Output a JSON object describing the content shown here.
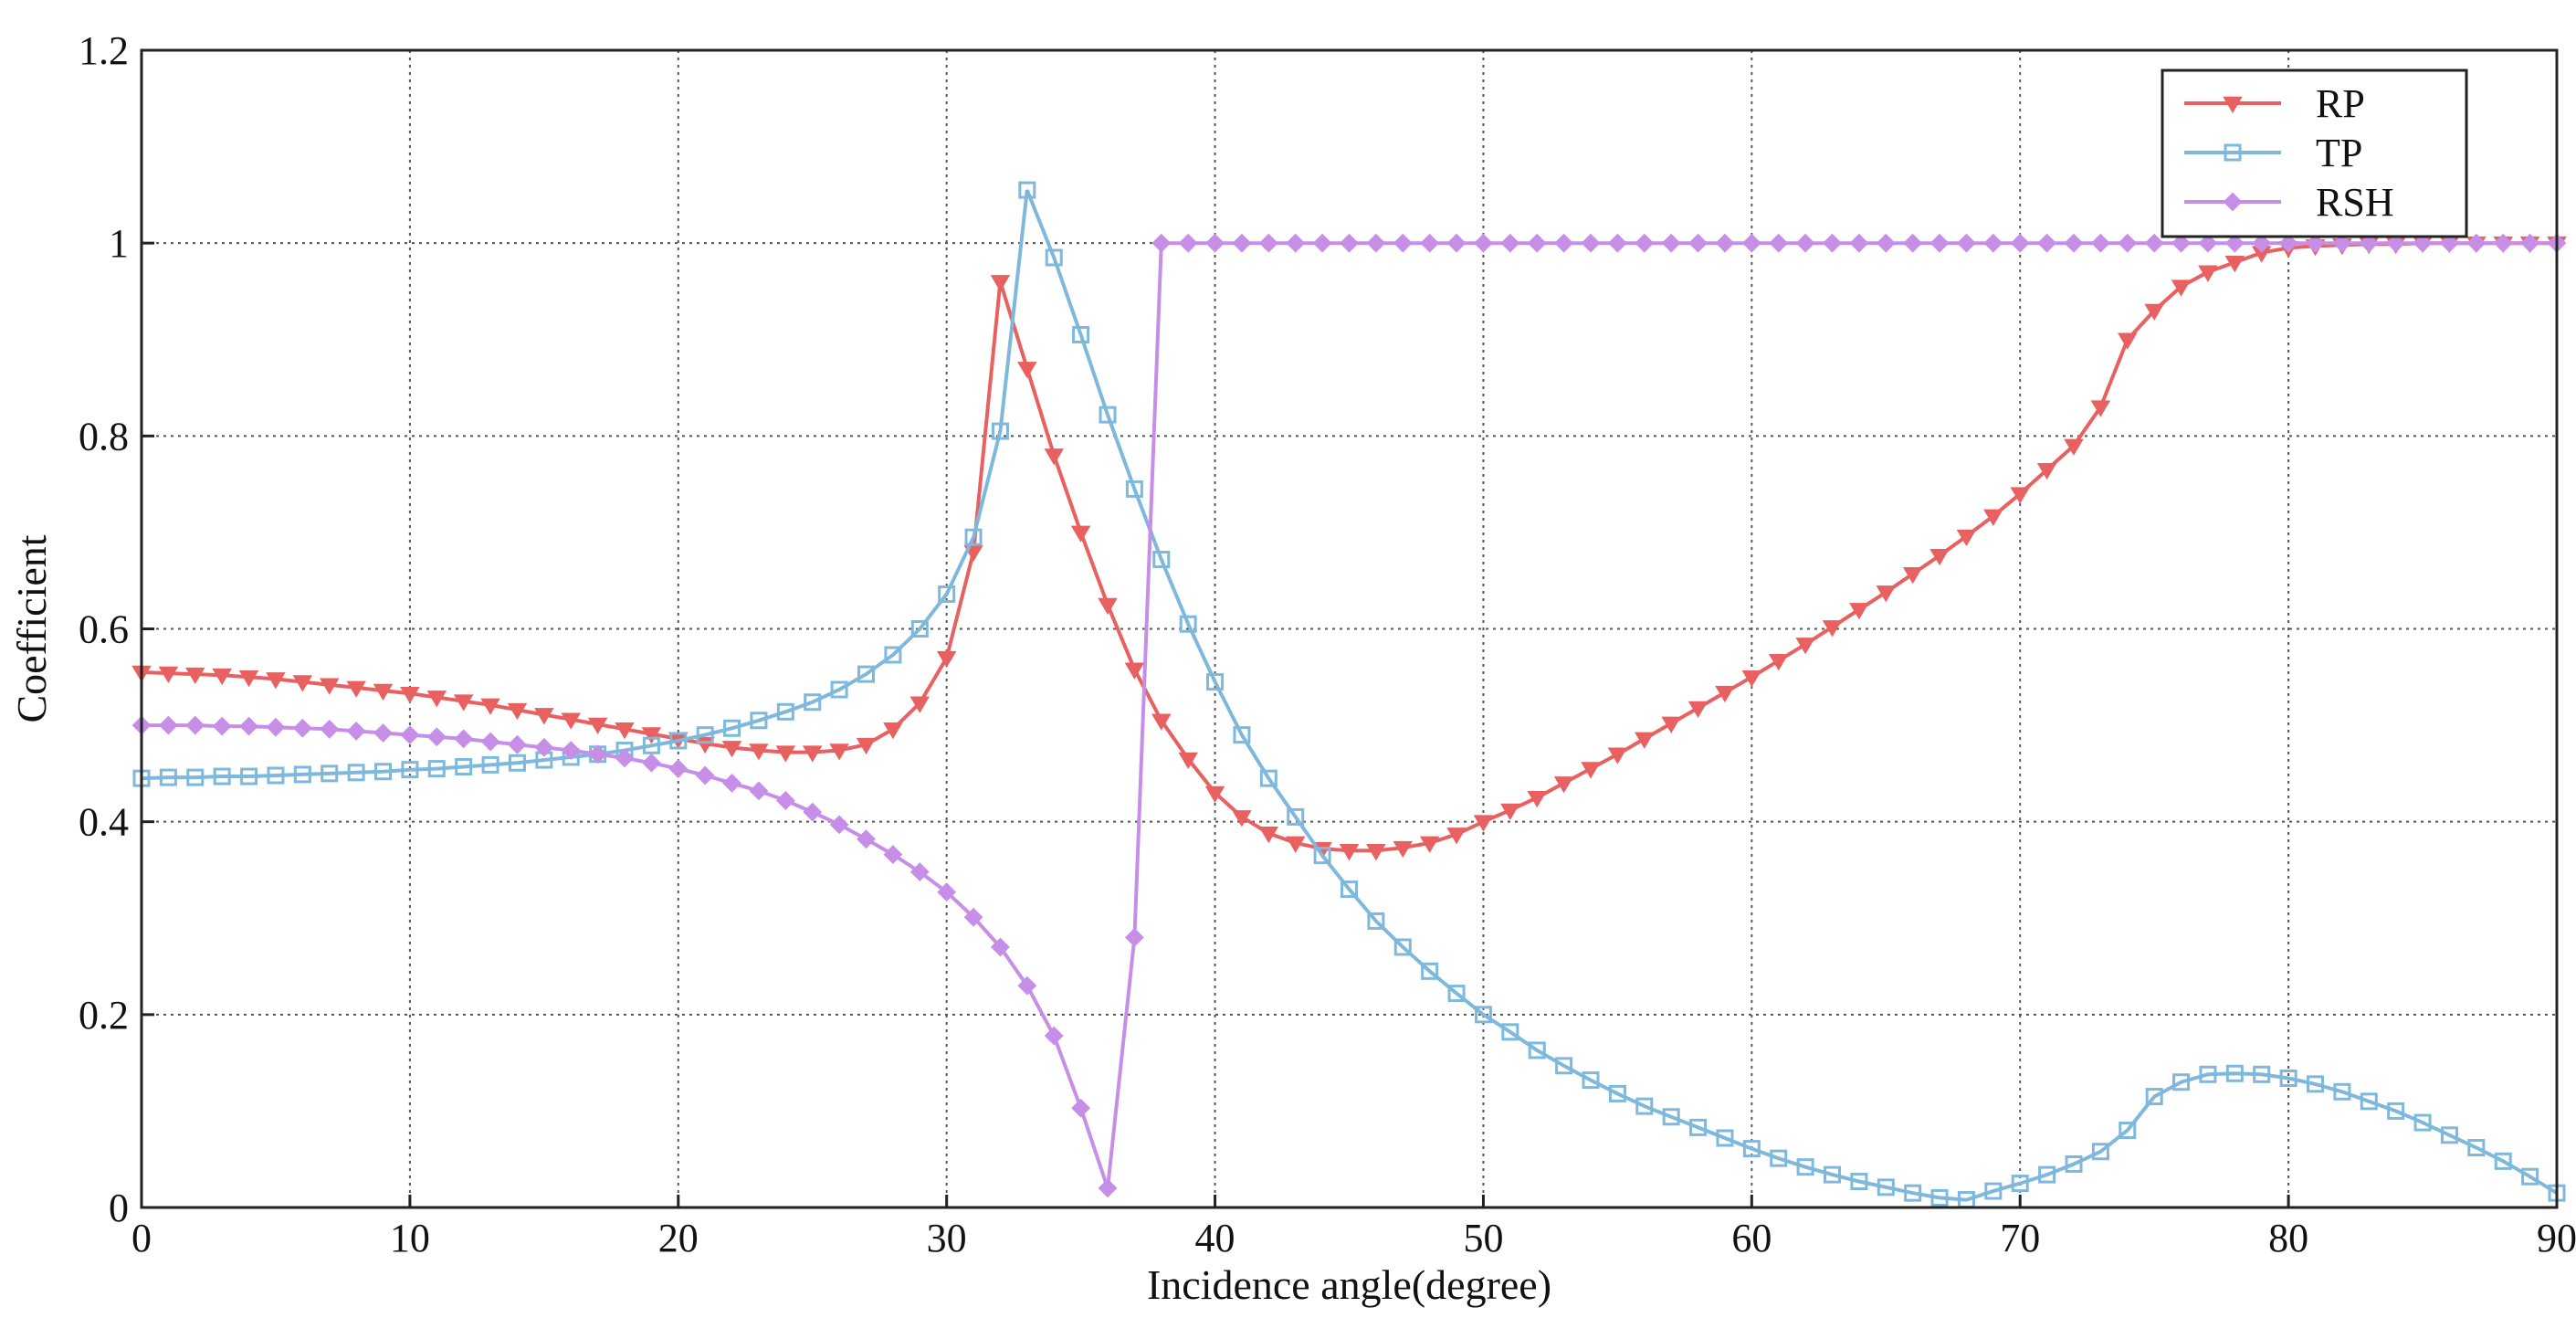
{
  "chart_data": {
    "type": "line",
    "title": "",
    "xlabel": "Incidence angle(degree)",
    "ylabel": "Coefficient",
    "xlim": [
      0,
      90
    ],
    "ylim": [
      0,
      1.2
    ],
    "xticks": [
      0,
      10,
      20,
      30,
      40,
      50,
      60,
      70,
      80,
      90
    ],
    "yticks": [
      0,
      0.2,
      0.4,
      0.6,
      0.8,
      1,
      1.2
    ],
    "xtick_labels": [
      "0",
      "10",
      "20",
      "30",
      "40",
      "50",
      "60",
      "70",
      "80",
      "90"
    ],
    "ytick_labels": [
      "0",
      "0.2",
      "0.4",
      "0.6",
      "0.8",
      "1",
      "1.2"
    ],
    "grid": true,
    "legend_position": "top-right",
    "x": [
      0,
      1,
      2,
      3,
      4,
      5,
      6,
      7,
      8,
      9,
      10,
      11,
      12,
      13,
      14,
      15,
      16,
      17,
      18,
      19,
      20,
      21,
      22,
      23,
      24,
      25,
      26,
      27,
      28,
      29,
      30,
      31,
      32,
      33,
      34,
      35,
      36,
      37,
      38,
      39,
      40,
      41,
      42,
      43,
      44,
      45,
      46,
      47,
      48,
      49,
      50,
      51,
      52,
      53,
      54,
      55,
      56,
      57,
      58,
      59,
      60,
      61,
      62,
      63,
      64,
      65,
      66,
      67,
      68,
      69,
      70,
      71,
      72,
      73,
      74,
      75,
      76,
      77,
      78,
      79,
      80,
      81,
      82,
      83,
      84,
      85,
      86,
      87,
      88,
      89,
      90
    ],
    "series": [
      {
        "name": "RP",
        "color": "#e8605f",
        "marker": "triangle-down",
        "values": [
          0.555,
          0.554,
          0.553,
          0.552,
          0.55,
          0.548,
          0.545,
          0.542,
          0.539,
          0.536,
          0.533,
          0.529,
          0.525,
          0.521,
          0.516,
          0.511,
          0.506,
          0.501,
          0.496,
          0.491,
          0.486,
          0.481,
          0.477,
          0.474,
          0.472,
          0.472,
          0.474,
          0.48,
          0.496,
          0.523,
          0.57,
          0.68,
          0.96,
          0.87,
          0.78,
          0.7,
          0.625,
          0.558,
          0.505,
          0.465,
          0.43,
          0.405,
          0.388,
          0.378,
          0.372,
          0.37,
          0.37,
          0.373,
          0.378,
          0.387,
          0.4,
          0.412,
          0.425,
          0.44,
          0.455,
          0.47,
          0.486,
          0.502,
          0.518,
          0.534,
          0.55,
          0.567,
          0.584,
          0.602,
          0.62,
          0.638,
          0.657,
          0.676,
          0.696,
          0.717,
          0.74,
          0.765,
          0.79,
          0.83,
          0.9,
          0.93,
          0.955,
          0.97,
          0.98,
          0.99,
          0.995,
          0.997,
          0.998,
          0.999,
          0.999,
          1.0,
          1.0,
          1.0,
          1.0,
          1.0,
          1.0
        ]
      },
      {
        "name": "TP",
        "color": "#7eb8dc",
        "marker": "square",
        "values": [
          0.445,
          0.446,
          0.446,
          0.447,
          0.447,
          0.448,
          0.449,
          0.45,
          0.451,
          0.452,
          0.454,
          0.455,
          0.457,
          0.459,
          0.461,
          0.464,
          0.467,
          0.47,
          0.474,
          0.479,
          0.484,
          0.49,
          0.497,
          0.505,
          0.514,
          0.524,
          0.537,
          0.553,
          0.573,
          0.6,
          0.636,
          0.695,
          0.805,
          1.055,
          0.985,
          0.905,
          0.822,
          0.745,
          0.672,
          0.605,
          0.545,
          0.49,
          0.445,
          0.405,
          0.365,
          0.33,
          0.297,
          0.27,
          0.245,
          0.222,
          0.2,
          0.182,
          0.163,
          0.147,
          0.132,
          0.118,
          0.105,
          0.094,
          0.083,
          0.072,
          0.061,
          0.051,
          0.042,
          0.034,
          0.027,
          0.021,
          0.015,
          0.01,
          0.008,
          0.017,
          0.025,
          0.034,
          0.045,
          0.058,
          0.08,
          0.115,
          0.13,
          0.138,
          0.139,
          0.138,
          0.134,
          0.128,
          0.12,
          0.11,
          0.1,
          0.088,
          0.075,
          0.062,
          0.048,
          0.032,
          0.015
        ]
      },
      {
        "name": "RSH",
        "color": "#c78ee8",
        "marker": "diamond",
        "values": [
          0.5,
          0.5,
          0.5,
          0.499,
          0.499,
          0.498,
          0.497,
          0.496,
          0.494,
          0.492,
          0.49,
          0.488,
          0.486,
          0.483,
          0.48,
          0.477,
          0.474,
          0.47,
          0.466,
          0.461,
          0.455,
          0.448,
          0.44,
          0.432,
          0.422,
          0.41,
          0.397,
          0.382,
          0.366,
          0.348,
          0.327,
          0.301,
          0.27,
          0.23,
          0.178,
          0.103,
          0.02,
          0.28,
          1.0,
          1.0,
          1.0,
          1.0,
          1.0,
          1.0,
          1.0,
          1.0,
          1.0,
          1.0,
          1.0,
          1.0,
          1.0,
          1.0,
          1.0,
          1.0,
          1.0,
          1.0,
          1.0,
          1.0,
          1.0,
          1.0,
          1.0,
          1.0,
          1.0,
          1.0,
          1.0,
          1.0,
          1.0,
          1.0,
          1.0,
          1.0,
          1.0,
          1.0,
          1.0,
          1.0,
          1.0,
          1.0,
          1.0,
          1.0,
          1.0,
          1.0,
          1.0,
          1.0,
          1.0,
          1.0,
          1.0,
          1.0,
          1.0,
          1.0,
          1.0,
          1.0,
          1.0
        ]
      }
    ]
  }
}
